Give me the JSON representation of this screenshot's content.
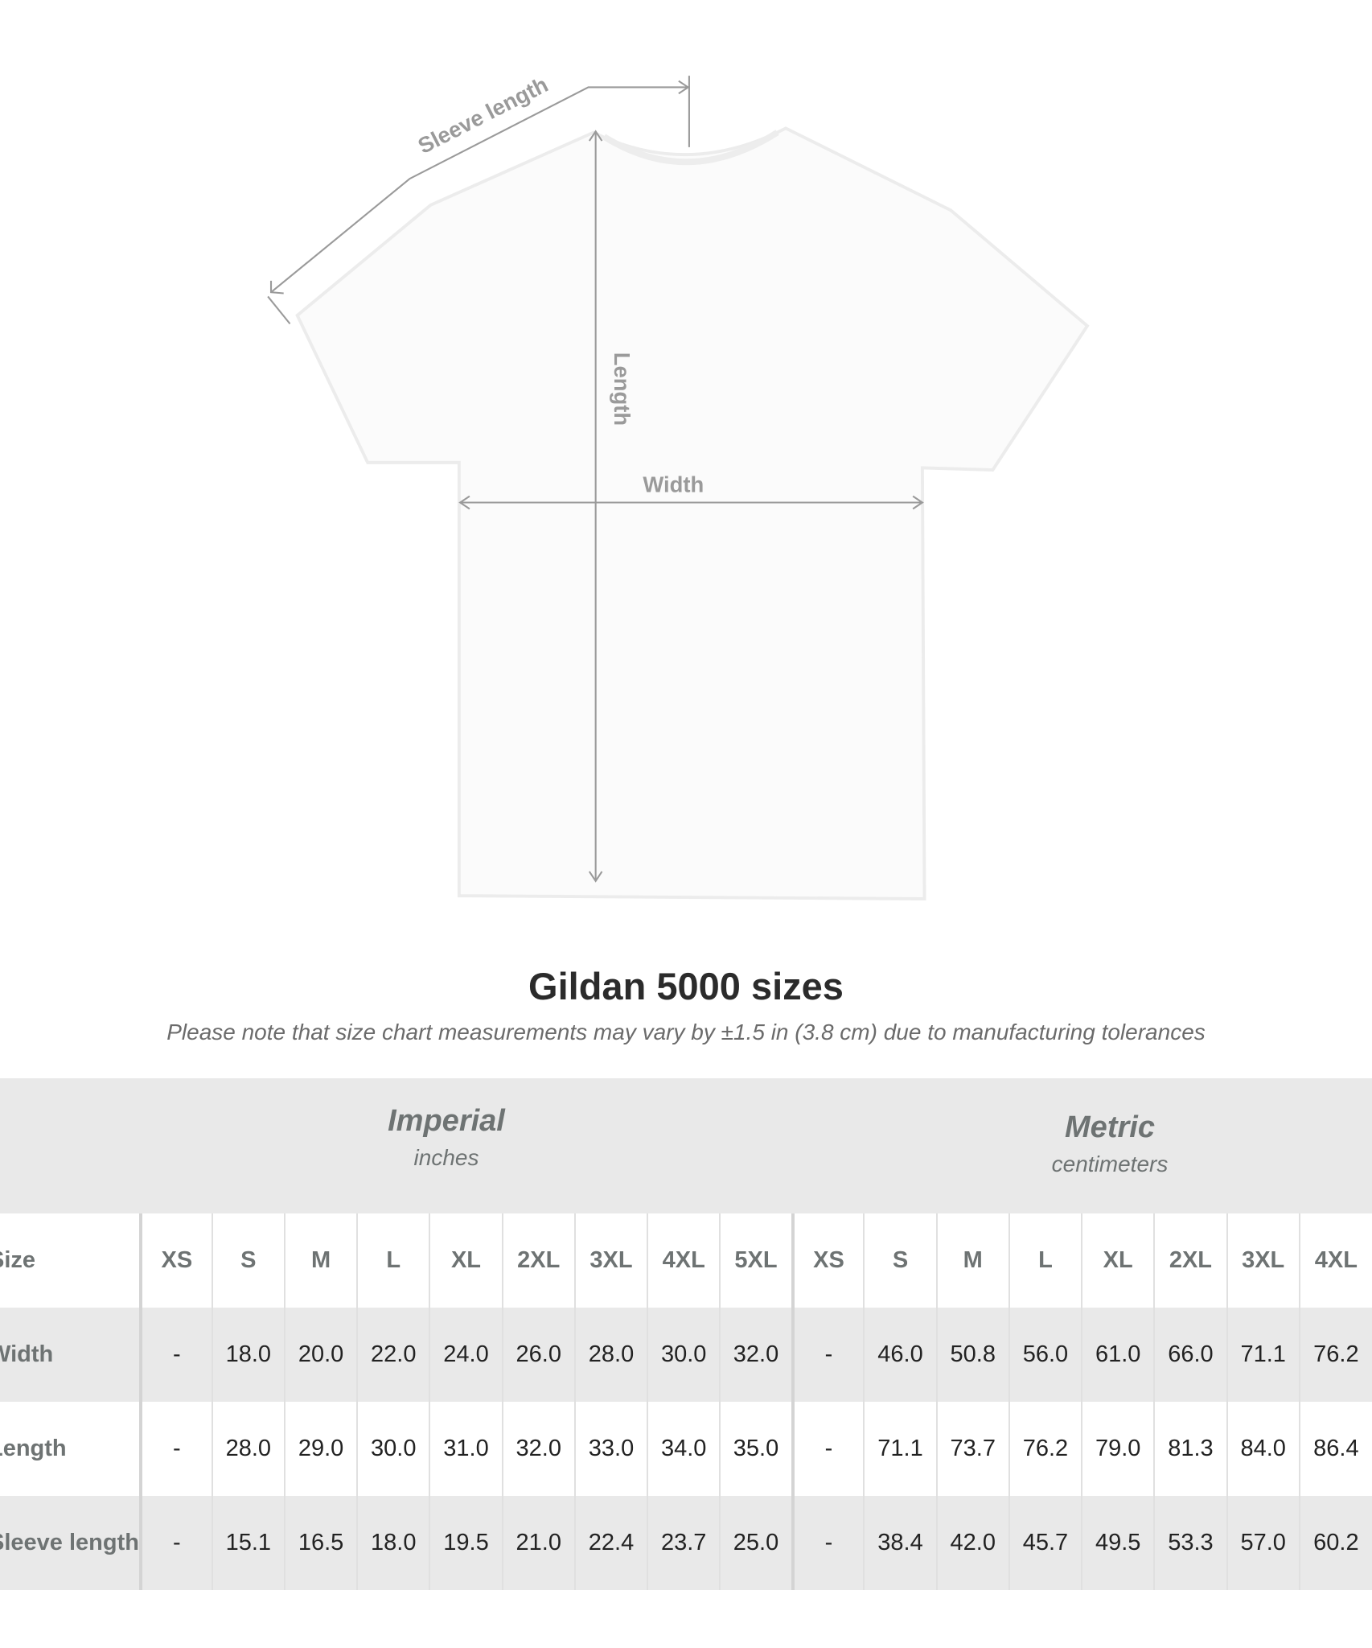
{
  "diagram": {
    "sleeve_label": "Sleeve length",
    "length_label": "Length",
    "width_label": "Width"
  },
  "title": "Gildan 5000 sizes",
  "note": "Please note that size chart measurements may vary by ±1.5 in (3.8 cm) due to manufacturing tolerances",
  "imperial": {
    "heading": "Imperial",
    "unit": "inches"
  },
  "metric": {
    "heading": "Metric",
    "unit": "centimeters"
  },
  "table": {
    "header": {
      "label": "Size",
      "imperial": [
        "XS",
        "S",
        "M",
        "L",
        "XL",
        "2XL",
        "3XL",
        "4XL",
        "5XL"
      ],
      "metric": [
        "XS",
        "S",
        "M",
        "L",
        "XL",
        "2XL",
        "3XL",
        "4XL"
      ]
    },
    "rows": [
      {
        "label": "Width",
        "imperial": [
          "-",
          "18.0",
          "20.0",
          "22.0",
          "24.0",
          "26.0",
          "28.0",
          "30.0",
          "32.0"
        ],
        "metric": [
          "-",
          "46.0",
          "50.8",
          "56.0",
          "61.0",
          "66.0",
          "71.1",
          "76.2"
        ]
      },
      {
        "label": "Length",
        "imperial": [
          "-",
          "28.0",
          "29.0",
          "30.0",
          "31.0",
          "32.0",
          "33.0",
          "34.0",
          "35.0"
        ],
        "metric": [
          "-",
          "71.1",
          "73.7",
          "76.2",
          "79.0",
          "81.3",
          "84.0",
          "86.4"
        ]
      },
      {
        "label": "Sleeve length",
        "imperial": [
          "-",
          "15.1",
          "16.5",
          "18.0",
          "19.5",
          "21.0",
          "22.4",
          "23.7",
          "25.0"
        ],
        "metric": [
          "-",
          "38.4",
          "42.0",
          "45.7",
          "49.5",
          "53.3",
          "57.0",
          "60.2"
        ]
      }
    ]
  },
  "colors": {
    "band": "#e9e9e9",
    "heading": "#6e7373",
    "arrow": "#9a9a9a"
  }
}
